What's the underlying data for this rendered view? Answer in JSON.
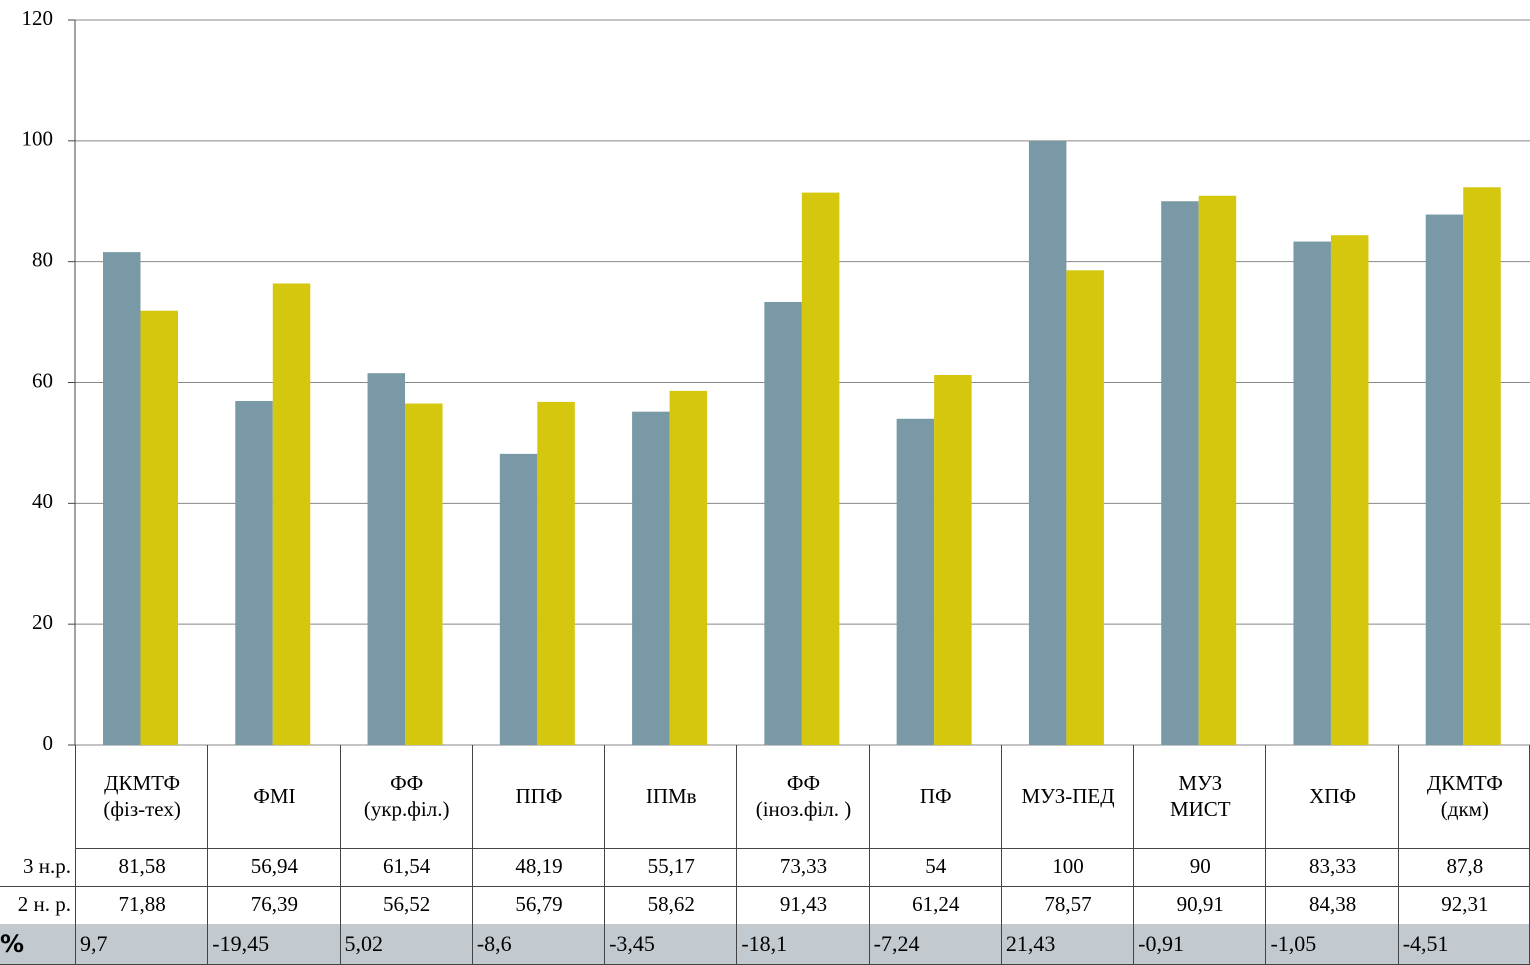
{
  "chart_data": {
    "type": "bar",
    "categories": [
      "ДКМТФ (фіз-тех)",
      "ФМІ",
      "ФФ (укр.філ.)",
      "ППФ",
      "ІПМв",
      "ФФ (іноз.філ. )",
      "ПФ",
      "МУЗ-ПЕД",
      "МУЗ МИСТ",
      "ХПФ",
      "ДКМТФ (дкм)"
    ],
    "series": [
      {
        "name": "3 н.р.",
        "color": "#7899a5",
        "values": [
          81.58,
          56.94,
          61.54,
          48.19,
          55.17,
          73.33,
          54,
          100,
          90,
          83.33,
          87.8
        ],
        "value_labels": [
          "81,58",
          "56,94",
          "61,54",
          "48,19",
          "55,17",
          "73,33",
          "54",
          "100",
          "90",
          "83,33",
          "87,8"
        ]
      },
      {
        "name": "2 н. р.",
        "color": "#d4c70d",
        "values": [
          71.88,
          76.39,
          56.52,
          56.79,
          58.62,
          91.43,
          61.24,
          78.57,
          90.91,
          84.38,
          92.31
        ],
        "value_labels": [
          "71,88",
          "76,39",
          "56,52",
          "56,79",
          "58,62",
          "91,43",
          "61,24",
          "78,57",
          "90,91",
          "84,38",
          "92,31"
        ]
      }
    ],
    "percent_row": {
      "name": "%",
      "values": [
        9.7,
        -19.45,
        5.02,
        -8.6,
        -3.45,
        -18.1,
        -7.24,
        21.43,
        -0.91,
        -1.05,
        -4.51
      ],
      "value_labels": [
        "9,7",
        "-19,45",
        "5,02",
        "-8,6",
        "-3,45",
        "-18,1",
        "-7,24",
        "21,43",
        "-0,91",
        "-1,05",
        "-4,51"
      ]
    },
    "ylim": [
      0,
      120
    ],
    "yticks": [
      0,
      20,
      40,
      60,
      80,
      100,
      120
    ],
    "grid": true
  }
}
